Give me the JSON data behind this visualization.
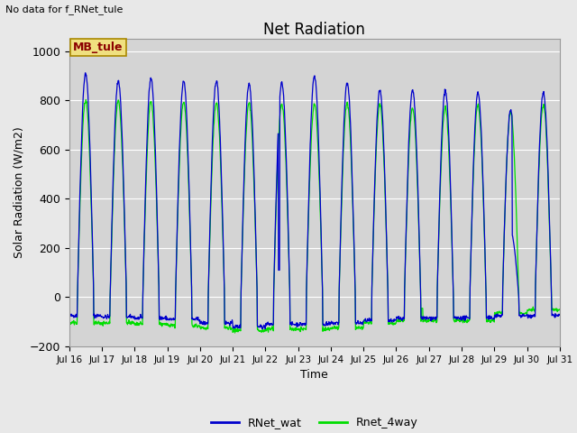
{
  "title": "Net Radiation",
  "xlabel": "Time",
  "ylabel": "Solar Radiation (W/m2)",
  "top_left_text": "No data for f_RNet_tule",
  "annotation_box": "MB_tule",
  "ylim": [
    -200,
    1050
  ],
  "yticks": [
    -200,
    0,
    200,
    400,
    600,
    800,
    1000
  ],
  "background_color": "#e8e8e8",
  "plot_bg_color": "#d4d4d4",
  "grid_color": "white",
  "line1_color": "#0000cc",
  "line2_color": "#00dd00",
  "legend_labels": [
    "RNet_wat",
    "Rnet_4way"
  ],
  "num_days": 15,
  "start_day": 16,
  "x_tick_labels": [
    "Jul 16",
    "Jul 17",
    "Jul 18",
    "Jul 19",
    "Jul 20",
    "Jul 21",
    "Jul 22",
    "Jul 23",
    "Jul 24",
    "Jul 25",
    "Jul 26",
    "Jul 27",
    "Jul 28",
    "Jul 29",
    "Jul 30",
    "Jul 31"
  ]
}
